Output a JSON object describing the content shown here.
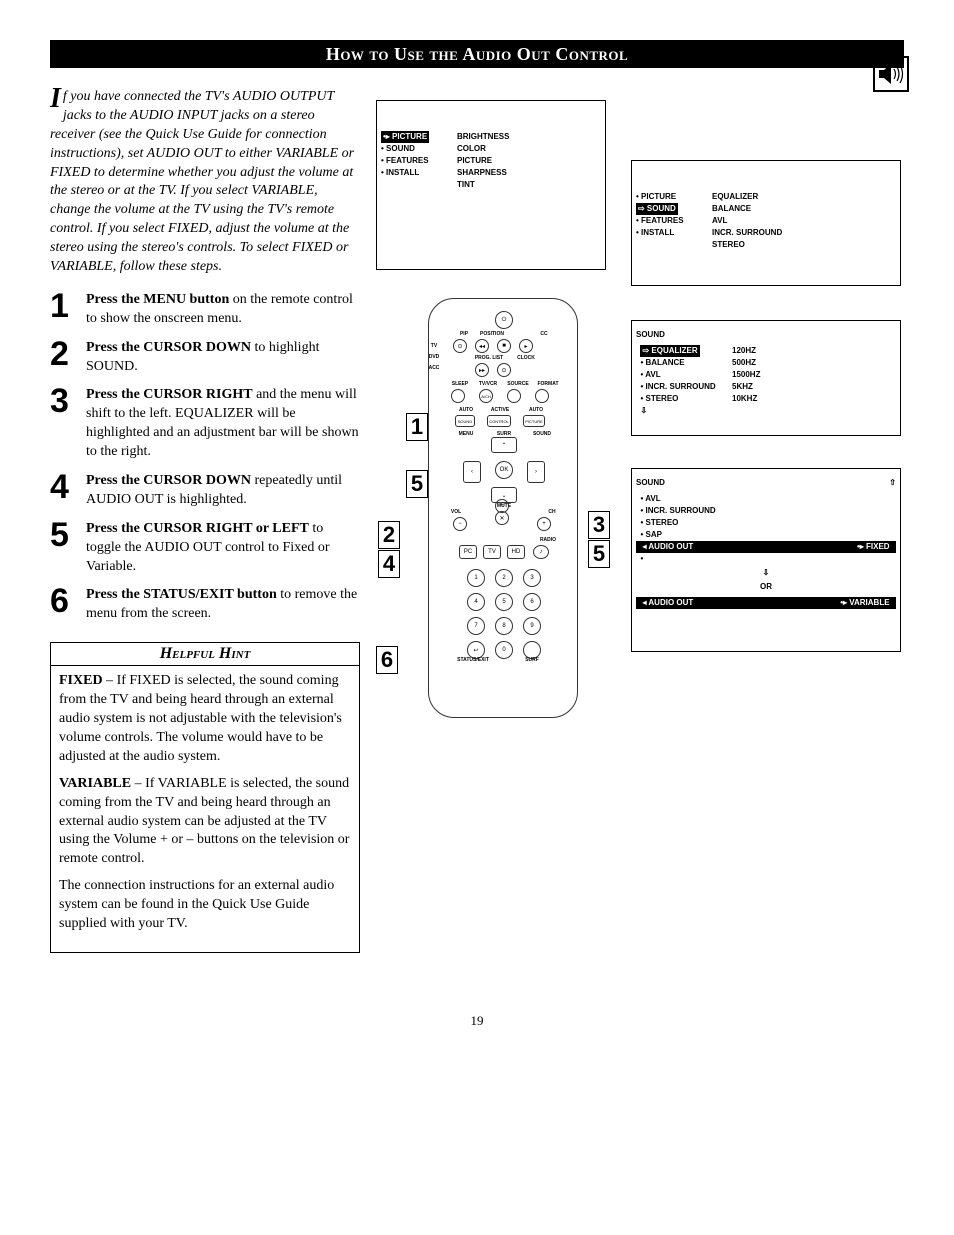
{
  "header": {
    "title": "How to Use the Audio Out Control"
  },
  "page_number": "19",
  "intro": "If you have connected the TV's AUDIO OUTPUT jacks to the AUDIO INPUT jacks on a stereo receiver (see the Quick Use Guide for connection instructions), set AUDIO OUT to either VARIABLE or FIXED to determine whether you adjust the volume at the stereo or at the TV.  If you select VARIABLE, change the volume at the TV using the TV's remote control.  If you select FIXED, adjust the volume at the stereo using the stereo's controls. To select FIXED or VARIABLE, follow these steps.",
  "intro_first_letter": "I",
  "steps": [
    {
      "num": "1",
      "bold": "Press the MENU button",
      "rest": " on the remote control to show the onscreen menu."
    },
    {
      "num": "2",
      "bold": "Press the CURSOR DOWN",
      "rest": " to highlight SOUND."
    },
    {
      "num": "3",
      "bold": "Press the CURSOR RIGHT",
      "rest": " and the menu will shift to the left. EQUALIZER will be highlighted and an adjustment bar will be shown to the right."
    },
    {
      "num": "4",
      "bold": "Press the CURSOR DOWN",
      "rest": " repeatedly until AUDIO OUT is highlighted."
    },
    {
      "num": "5",
      "bold": "Press the CURSOR RIGHT or LEFT",
      "rest": " to toggle the AUDIO OUT control to Fixed or Variable."
    },
    {
      "num": "6",
      "bold": "Press the STATUS/EXIT button",
      "rest": " to remove the menu from the screen."
    }
  ],
  "hint": {
    "title": "Helpful Hint",
    "p1_bold": "FIXED",
    "p1": " – If FIXED is selected, the sound coming from the TV and being heard through an external audio system is not adjustable with the television's volume controls. The volume would have to be adjusted at the audio system.",
    "p2_bold": "VARIABLE",
    "p2": " – If VARIABLE is selected, the sound coming from the TV and being heard through an external audio system can be adjusted at the TV using the Volume + or – buttons on the television or remote control.",
    "p3": "The connection instructions for an external audio system can be found in the Quick Use Guide supplied with your TV."
  },
  "menu1": {
    "left": [
      "PICTURE",
      "SOUND",
      "FEATURES",
      "INSTALL"
    ],
    "right": [
      "BRIGHTNESS",
      "COLOR",
      "PICTURE",
      "SHARPNESS",
      "TINT"
    ],
    "highlight_left": 0
  },
  "menu2": {
    "left": [
      "PICTURE",
      "SOUND",
      "FEATURES",
      "INSTALL"
    ],
    "right": [
      "EQUALIZER",
      "BALANCE",
      "AVL",
      "INCR. SURROUND",
      "STEREO"
    ],
    "highlight_left": 1
  },
  "menu3": {
    "header": "SOUND",
    "left": [
      "EQUALIZER",
      "BALANCE",
      "AVL",
      "INCR. SURROUND",
      "STEREO"
    ],
    "right": [
      "120HZ",
      "500HZ",
      "1500HZ",
      "5KHZ",
      "10KHZ"
    ],
    "highlight_left": 0
  },
  "menu4": {
    "header": "SOUND",
    "items": [
      "AVL",
      "INCR. SURROUND",
      "STEREO",
      "SAP",
      "AUDIO OUT"
    ],
    "right_val": "FIXED",
    "highlight": 4,
    "or": "OR",
    "alt": "AUDIO OUT",
    "alt_val": "VARIABLE"
  },
  "remote_labels": {
    "top1": [
      "PIP",
      "POSITION",
      "CC"
    ],
    "top2": [
      "PROG. LIST",
      "CLOCK"
    ],
    "side": [
      "TV",
      "DVD",
      "ACC"
    ],
    "row3": [
      "SLEEP",
      "TV/VCR",
      "SOURCE",
      "FORMAT"
    ],
    "row4": [
      "AUTO SOUND",
      "ACTIVE CONTROL",
      "AUTO PICTURE"
    ],
    "row5": [
      "MENU",
      "SOUND"
    ],
    "surr": "SURR",
    "vol": "VOL",
    "mute": "MUTE",
    "ch": "CH",
    "mode": [
      "PC",
      "TV",
      "HD"
    ],
    "radio": "RADIO",
    "bottom": [
      "STATUS/EXIT",
      "SURF"
    ]
  },
  "callouts": [
    "1",
    "2",
    "3",
    "4",
    "5",
    "6"
  ],
  "colors": {
    "black": "#000000",
    "white": "#ffffff"
  }
}
